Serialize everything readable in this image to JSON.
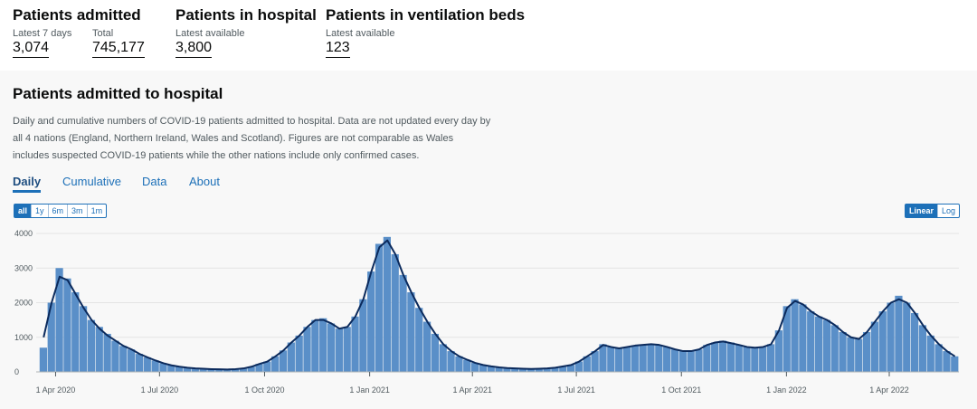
{
  "headline": [
    {
      "title": "Patients admitted",
      "metrics": [
        {
          "label": "Latest 7 days",
          "value": "3,074"
        },
        {
          "label": "Total",
          "value": "745,177"
        }
      ]
    },
    {
      "title": "Patients in hospital",
      "metrics": [
        {
          "label": "Latest available",
          "value": "3,800"
        }
      ]
    },
    {
      "title": "Patients in ventilation beds",
      "metrics": [
        {
          "label": "Latest available",
          "value": "123"
        }
      ]
    }
  ],
  "card": {
    "title": "Patients admitted to hospital",
    "description": "Daily and cumulative numbers of COVID-19 patients admitted to hospital. Data are not updated every day by all 4 nations (England, Northern Ireland, Wales and Scotland). Figures are not comparable as Wales includes suspected COVID-19 patients while the other nations include only confirmed cases.",
    "tabs": [
      "Daily",
      "Cumulative",
      "Data",
      "About"
    ],
    "ranges": [
      "all",
      "1y",
      "6m",
      "3m",
      "1m"
    ],
    "scales": [
      "Linear",
      "Log"
    ]
  },
  "chart_data": {
    "type": "bar+line",
    "log_scale": false,
    "grid": true,
    "x": [
      "2020-03-18",
      "2020-03-25",
      "2020-04-01",
      "2020-04-08",
      "2020-04-15",
      "2020-04-22",
      "2020-04-29",
      "2020-05-06",
      "2020-05-13",
      "2020-05-20",
      "2020-05-27",
      "2020-06-03",
      "2020-06-10",
      "2020-06-17",
      "2020-06-24",
      "2020-07-01",
      "2020-07-08",
      "2020-07-15",
      "2020-07-22",
      "2020-07-29",
      "2020-08-05",
      "2020-08-12",
      "2020-08-19",
      "2020-08-26",
      "2020-09-02",
      "2020-09-09",
      "2020-09-16",
      "2020-09-23",
      "2020-09-30",
      "2020-10-07",
      "2020-10-14",
      "2020-10-21",
      "2020-10-28",
      "2020-11-04",
      "2020-11-11",
      "2020-11-18",
      "2020-11-25",
      "2020-12-02",
      "2020-12-09",
      "2020-12-16",
      "2020-12-23",
      "2020-12-30",
      "2021-01-06",
      "2021-01-13",
      "2021-01-20",
      "2021-01-27",
      "2021-02-03",
      "2021-02-10",
      "2021-02-17",
      "2021-02-24",
      "2021-03-03",
      "2021-03-10",
      "2021-03-17",
      "2021-03-24",
      "2021-03-31",
      "2021-04-07",
      "2021-04-14",
      "2021-04-21",
      "2021-04-28",
      "2021-05-05",
      "2021-05-12",
      "2021-05-19",
      "2021-05-26",
      "2021-06-02",
      "2021-06-09",
      "2021-06-16",
      "2021-06-23",
      "2021-06-30",
      "2021-07-07",
      "2021-07-14",
      "2021-07-21",
      "2021-07-28",
      "2021-08-04",
      "2021-08-11",
      "2021-08-18",
      "2021-08-25",
      "2021-09-01",
      "2021-09-08",
      "2021-09-15",
      "2021-09-22",
      "2021-09-29",
      "2021-10-06",
      "2021-10-13",
      "2021-10-20",
      "2021-10-27",
      "2021-11-03",
      "2021-11-10",
      "2021-11-17",
      "2021-11-24",
      "2021-12-01",
      "2021-12-08",
      "2021-12-15",
      "2021-12-22",
      "2021-12-29",
      "2022-01-05",
      "2022-01-12",
      "2022-01-19",
      "2022-01-26",
      "2022-02-02",
      "2022-02-09",
      "2022-02-16",
      "2022-02-23",
      "2022-03-02",
      "2022-03-09",
      "2022-03-16",
      "2022-03-23",
      "2022-03-30",
      "2022-04-06",
      "2022-04-13",
      "2022-04-20",
      "2022-04-27",
      "2022-05-04",
      "2022-05-11",
      "2022-05-18",
      "2022-05-25"
    ],
    "series": [
      {
        "color": "#5a8fc8",
        "values": [
          700,
          2000,
          3000,
          2700,
          2300,
          1900,
          1500,
          1300,
          1100,
          900,
          750,
          650,
          520,
          420,
          330,
          250,
          200,
          150,
          120,
          100,
          90,
          80,
          75,
          70,
          80,
          100,
          150,
          230,
          300,
          450,
          620,
          850,
          1050,
          1300,
          1500,
          1550,
          1400,
          1250,
          1300,
          1600,
          2100,
          2900,
          3700,
          3900,
          3400,
          2800,
          2300,
          1850,
          1450,
          1100,
          800,
          600,
          450,
          350,
          260,
          200,
          160,
          130,
          110,
          100,
          90,
          85,
          90,
          100,
          120,
          160,
          200,
          300,
          450,
          600,
          800,
          720,
          680,
          720,
          760,
          780,
          800,
          780,
          720,
          650,
          600,
          600,
          650,
          780,
          850,
          900,
          850,
          780,
          720,
          700,
          720,
          800,
          1200,
          1900,
          2100,
          1950,
          1750,
          1600,
          1500,
          1350,
          1150,
          1000,
          950,
          1150,
          1450,
          1750,
          2000,
          2200,
          2000,
          1700,
          1350,
          1050,
          800,
          600,
          450
        ]
      },
      {
        "color": "#0b2a5c",
        "values": [
          1000,
          2000,
          2750,
          2650,
          2250,
          1850,
          1500,
          1250,
          1050,
          900,
          750,
          650,
          520,
          420,
          330,
          250,
          190,
          150,
          120,
          100,
          90,
          80,
          75,
          70,
          80,
          100,
          150,
          230,
          300,
          450,
          620,
          850,
          1050,
          1300,
          1500,
          1500,
          1400,
          1250,
          1300,
          1600,
          2100,
          2900,
          3600,
          3800,
          3400,
          2800,
          2300,
          1850,
          1450,
          1100,
          800,
          600,
          450,
          350,
          260,
          200,
          160,
          130,
          110,
          100,
          90,
          85,
          90,
          100,
          120,
          160,
          200,
          300,
          450,
          600,
          780,
          720,
          680,
          720,
          760,
          780,
          800,
          780,
          720,
          650,
          600,
          600,
          650,
          780,
          850,
          880,
          830,
          780,
          720,
          700,
          720,
          800,
          1200,
          1850,
          2050,
          1950,
          1750,
          1600,
          1500,
          1350,
          1150,
          1000,
          950,
          1150,
          1450,
          1750,
          2000,
          2100,
          2000,
          1700,
          1350,
          1050,
          800,
          600,
          450
        ]
      }
    ],
    "ylim": [
      0,
      4000
    ],
    "yticks": [
      0,
      1000,
      2000,
      3000,
      4000
    ],
    "xlim": [
      "2020-03-15",
      "2022-06-01"
    ],
    "xticks": [
      {
        "value": "2020-04-01",
        "label": "1 Apr 2020"
      },
      {
        "value": "2020-07-01",
        "label": "1 Jul 2020"
      },
      {
        "value": "2020-10-01",
        "label": "1 Oct 2020"
      },
      {
        "value": "2021-01-01",
        "label": "1 Jan 2021"
      },
      {
        "value": "2021-04-01",
        "label": "1 Apr 2021"
      },
      {
        "value": "2021-07-01",
        "label": "1 Jul 2021"
      },
      {
        "value": "2021-10-01",
        "label": "1 Oct 2021"
      },
      {
        "value": "2022-01-01",
        "label": "1 Jan 2022"
      },
      {
        "value": "2022-04-01",
        "label": "1 Apr 2022"
      }
    ]
  }
}
